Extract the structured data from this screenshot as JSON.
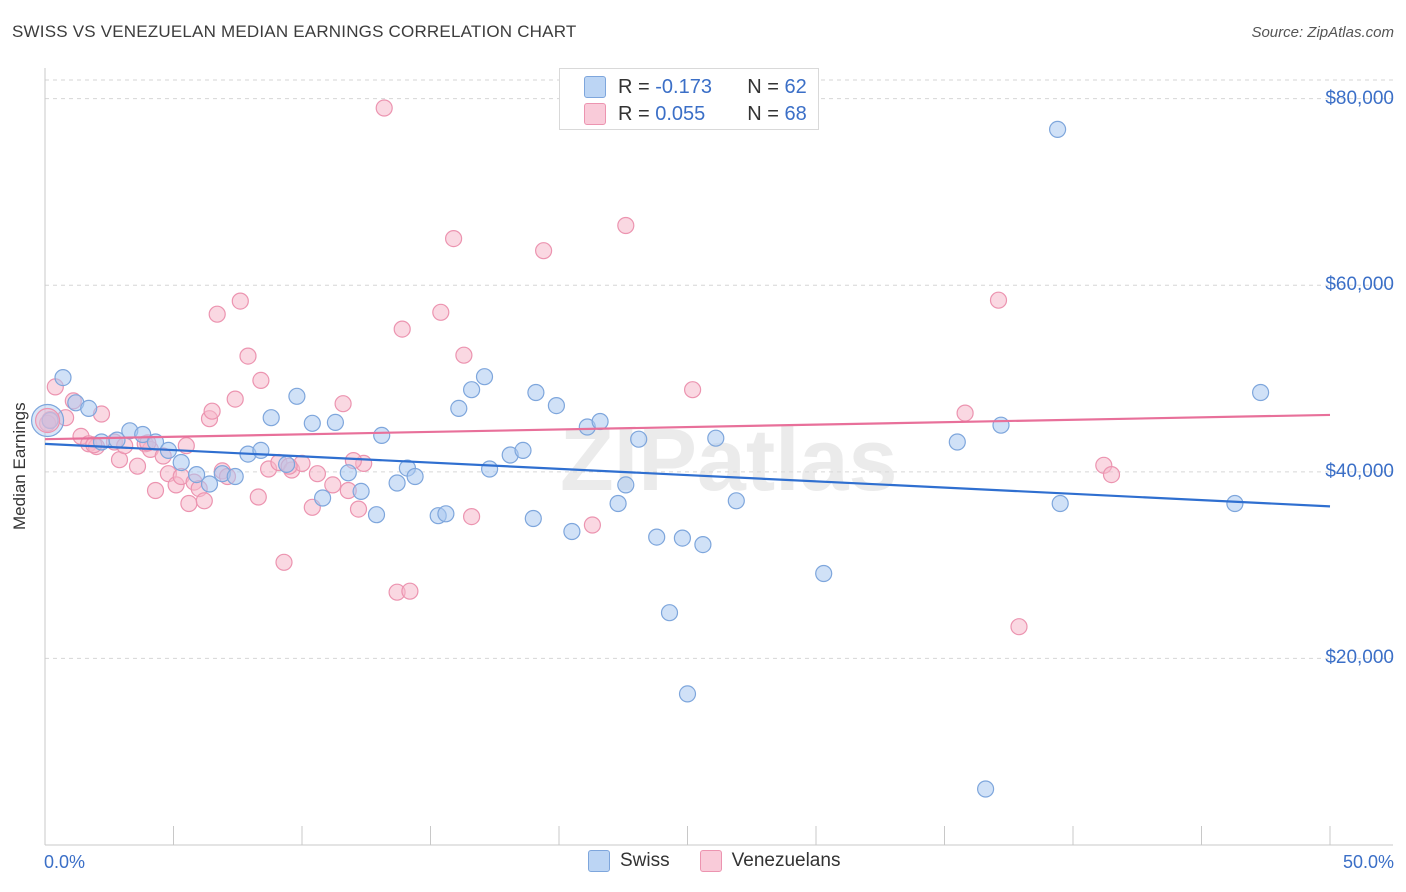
{
  "title": "SWISS VS VENEZUELAN MEDIAN EARNINGS CORRELATION CHART",
  "source": "Source: ZipAtlas.com",
  "watermark": "ZIPatlas",
  "colors": {
    "swiss_fill": "#a9c8f0",
    "swiss_stroke": "#7ea6dc",
    "swiss_line": "#2f6fd0",
    "ven_fill": "#f6b8cb",
    "ven_stroke": "#ec94b0",
    "ven_line": "#e8709a",
    "axis_text": "#3b6fc7",
    "grid": "#d6d6d6"
  },
  "legend_top": {
    "swiss": {
      "r_label": "R = ",
      "r_value": "-0.173",
      "n_label": "N = ",
      "n_value": "62"
    },
    "ven": {
      "r_label": "R = ",
      "r_value": "0.055",
      "n_label": "N = ",
      "n_value": "68"
    }
  },
  "legend_bottom": {
    "swiss": "Swiss",
    "ven": "Venezuelans"
  },
  "chart_data": {
    "type": "scatter",
    "title": "SWISS VS VENEZUELAN MEDIAN EARNINGS CORRELATION CHART",
    "xlabel": "",
    "ylabel": "Median Earnings",
    "x_tick_labels": [
      "0.0%",
      "50.0%"
    ],
    "y_tick_labels": [
      "$20,000",
      "$40,000",
      "$60,000",
      "$80,000"
    ],
    "y_ticks": [
      20000,
      40000,
      60000,
      80000
    ],
    "xlim": [
      0,
      50
    ],
    "ylim": [
      0,
      82000
    ],
    "grid": true,
    "series": [
      {
        "name": "Swiss",
        "trend": [
          [
            0,
            43000
          ],
          [
            50,
            36300
          ]
        ],
        "points": [
          [
            0.2,
            45500
          ],
          [
            0.7,
            50100
          ],
          [
            1.2,
            47400
          ],
          [
            1.7,
            46800
          ],
          [
            2.2,
            43200
          ],
          [
            2.8,
            43400
          ],
          [
            3.3,
            44400
          ],
          [
            3.8,
            44000
          ],
          [
            4.3,
            43200
          ],
          [
            4.8,
            42300
          ],
          [
            5.3,
            41000
          ],
          [
            5.9,
            39700
          ],
          [
            6.4,
            38700
          ],
          [
            6.9,
            39800
          ],
          [
            7.4,
            39500
          ],
          [
            7.9,
            41900
          ],
          [
            8.4,
            42300
          ],
          [
            8.8,
            45800
          ],
          [
            9.4,
            40800
          ],
          [
            9.8,
            48100
          ],
          [
            10.4,
            45200
          ],
          [
            10.8,
            37200
          ],
          [
            11.3,
            45300
          ],
          [
            11.8,
            39900
          ],
          [
            12.3,
            37900
          ],
          [
            12.9,
            35400
          ],
          [
            13.1,
            43900
          ],
          [
            13.7,
            38800
          ],
          [
            14.1,
            40400
          ],
          [
            14.4,
            39500
          ],
          [
            15.3,
            35300
          ],
          [
            15.6,
            35500
          ],
          [
            16.1,
            46800
          ],
          [
            16.6,
            48800
          ],
          [
            17.1,
            50200
          ],
          [
            17.3,
            40300
          ],
          [
            18.1,
            41800
          ],
          [
            18.6,
            42300
          ],
          [
            19.1,
            48500
          ],
          [
            19.0,
            35000
          ],
          [
            19.9,
            47100
          ],
          [
            20.5,
            33600
          ],
          [
            21.1,
            44800
          ],
          [
            21.6,
            45400
          ],
          [
            22.3,
            36600
          ],
          [
            22.6,
            38600
          ],
          [
            23.1,
            43500
          ],
          [
            23.8,
            33000
          ],
          [
            24.3,
            24900
          ],
          [
            24.8,
            32900
          ],
          [
            25.0,
            16200
          ],
          [
            25.6,
            32200
          ],
          [
            26.1,
            43600
          ],
          [
            26.9,
            36900
          ],
          [
            30.3,
            29100
          ],
          [
            35.5,
            43200
          ],
          [
            36.6,
            6000
          ],
          [
            37.2,
            45000
          ],
          [
            39.4,
            76700
          ],
          [
            39.5,
            36600
          ],
          [
            46.3,
            36600
          ],
          [
            47.3,
            48500
          ]
        ]
      },
      {
        "name": "Venezuelans",
        "trend": [
          [
            0,
            43500
          ],
          [
            50,
            46100
          ]
        ],
        "points": [
          [
            0.2,
            45600
          ],
          [
            0.4,
            49100
          ],
          [
            0.8,
            45800
          ],
          [
            1.1,
            47600
          ],
          [
            1.4,
            43800
          ],
          [
            1.7,
            43000
          ],
          [
            2.0,
            42700
          ],
          [
            2.2,
            46200
          ],
          [
            2.7,
            43200
          ],
          [
            2.9,
            41300
          ],
          [
            3.1,
            42800
          ],
          [
            3.6,
            40600
          ],
          [
            3.9,
            43000
          ],
          [
            4.1,
            42400
          ],
          [
            4.3,
            38000
          ],
          [
            4.6,
            41700
          ],
          [
            4.8,
            39800
          ],
          [
            5.1,
            38600
          ],
          [
            5.3,
            39500
          ],
          [
            5.5,
            42800
          ],
          [
            5.6,
            36600
          ],
          [
            5.8,
            38900
          ],
          [
            6.0,
            38200
          ],
          [
            6.2,
            36900
          ],
          [
            6.4,
            45700
          ],
          [
            6.5,
            46500
          ],
          [
            6.7,
            56900
          ],
          [
            6.9,
            40100
          ],
          [
            7.1,
            39500
          ],
          [
            7.4,
            47800
          ],
          [
            7.6,
            58300
          ],
          [
            7.9,
            52400
          ],
          [
            8.3,
            37300
          ],
          [
            8.4,
            49800
          ],
          [
            8.7,
            40300
          ],
          [
            9.1,
            41000
          ],
          [
            9.3,
            30300
          ],
          [
            9.6,
            40200
          ],
          [
            10.0,
            40900
          ],
          [
            10.4,
            36200
          ],
          [
            10.6,
            39800
          ],
          [
            11.2,
            38600
          ],
          [
            11.6,
            47300
          ],
          [
            11.8,
            38000
          ],
          [
            12.2,
            36000
          ],
          [
            12.4,
            40900
          ],
          [
            13.2,
            79000
          ],
          [
            13.7,
            27100
          ],
          [
            13.9,
            55300
          ],
          [
            14.2,
            27200
          ],
          [
            15.4,
            57100
          ],
          [
            15.9,
            65000
          ],
          [
            16.3,
            52500
          ],
          [
            16.6,
            35200
          ],
          [
            19.4,
            63700
          ],
          [
            21.3,
            34300
          ],
          [
            22.6,
            66400
          ],
          [
            25.2,
            48800
          ],
          [
            35.8,
            46300
          ],
          [
            37.1,
            58400
          ],
          [
            37.9,
            23400
          ],
          [
            41.2,
            40700
          ],
          [
            41.5,
            39700
          ],
          [
            0.1,
            45200
          ],
          [
            1.9,
            42900
          ],
          [
            4.0,
            43100
          ],
          [
            9.5,
            40600
          ],
          [
            12.0,
            41200
          ]
        ]
      }
    ]
  }
}
